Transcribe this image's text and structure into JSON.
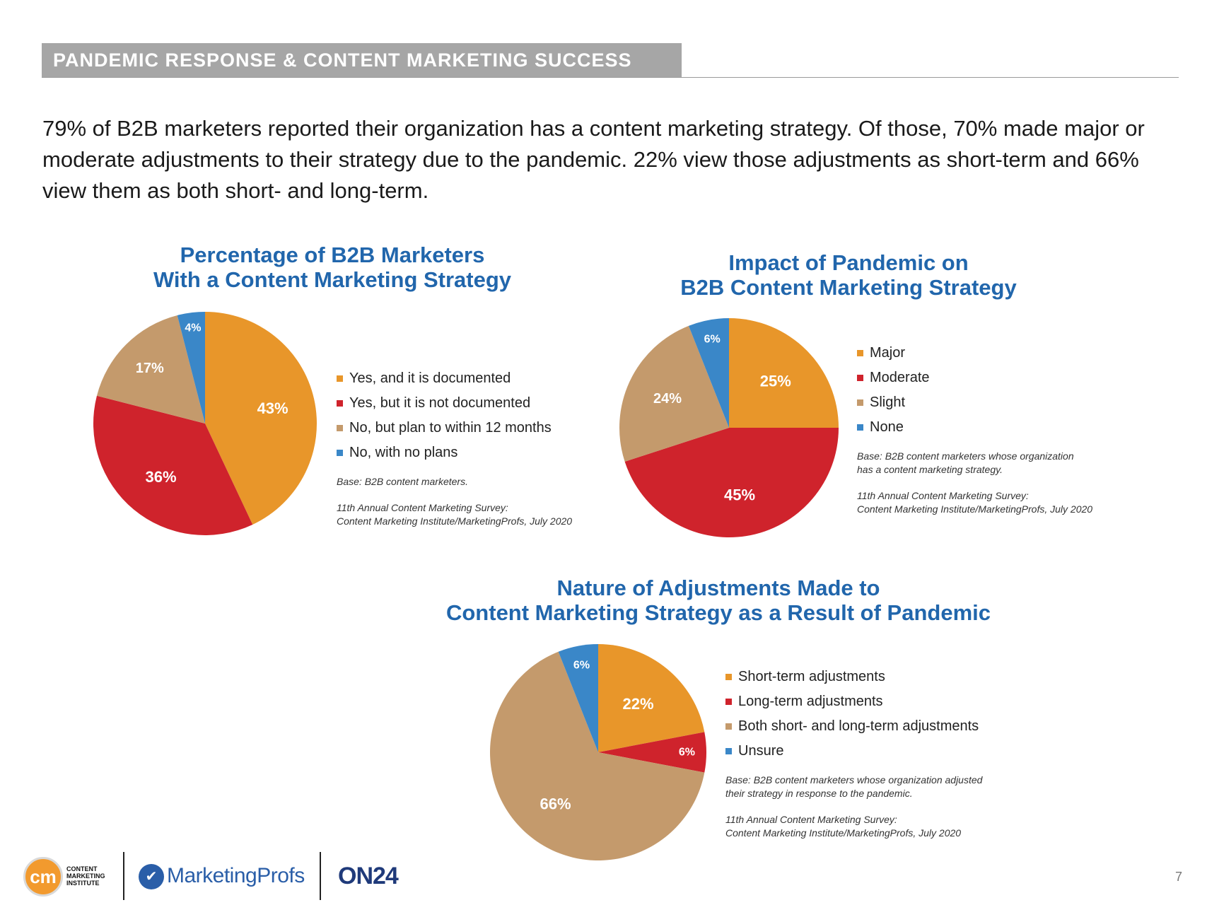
{
  "header": {
    "title": "PANDEMIC RESPONSE & CONTENT MARKETING SUCCESS"
  },
  "intro": {
    "text": "79% of B2B marketers reported their organization has a content marketing strategy. Of those, 70% made major or moderate adjustments to their strategy due to the pandemic. 22% view those adjustments as short-term and 66% view them as both short- and long-term."
  },
  "colors": {
    "orange": "#e8962a",
    "red": "#cf232c",
    "tan": "#c49a6c",
    "blue": "#3a87c8",
    "title_blue": "#2166ac"
  },
  "chart_data": [
    {
      "type": "pie",
      "title_line1": "Percentage of B2B Marketers",
      "title_line2": "With a Content Marketing Strategy",
      "categories": [
        "Yes, and it is documented",
        "Yes, but it is not documented",
        "No, but plan to within 12 months",
        "No, with no plans"
      ],
      "values": [
        43,
        36,
        17,
        4
      ],
      "labels": [
        "43%",
        "36%",
        "17%",
        "4%"
      ],
      "colors": [
        "#e8962a",
        "#cf232c",
        "#c49a6c",
        "#3a87c8"
      ],
      "base_note": "Base: B2B content marketers.",
      "source_line1": "11th Annual Content Marketing Survey:",
      "source_line2": "Content Marketing Institute/MarketingProfs, July 2020"
    },
    {
      "type": "pie",
      "title_line1": "Impact of Pandemic on",
      "title_line2": "B2B Content Marketing Strategy",
      "categories": [
        "Major",
        "Moderate",
        "Slight",
        "None"
      ],
      "values": [
        25,
        45,
        24,
        6
      ],
      "labels": [
        "25%",
        "45%",
        "24%",
        "6%"
      ],
      "colors": [
        "#e8962a",
        "#cf232c",
        "#c49a6c",
        "#3a87c8"
      ],
      "base_note_line1": "Base: B2B content marketers whose organization",
      "base_note_line2": "has a content marketing strategy.",
      "source_line1": "11th Annual Content Marketing Survey:",
      "source_line2": "Content Marketing Institute/MarketingProfs, July 2020"
    },
    {
      "type": "pie",
      "title_line1": "Nature of Adjustments Made to",
      "title_line2": "Content Marketing Strategy as a Result of Pandemic",
      "categories": [
        "Short-term adjustments",
        "Long-term adjustments",
        "Both short- and long-term adjustments",
        "Unsure"
      ],
      "values": [
        22,
        6,
        66,
        6
      ],
      "labels": [
        "22%",
        "6%",
        "66%",
        "6%"
      ],
      "colors": [
        "#e8962a",
        "#cf232c",
        "#c49a6c",
        "#3a87c8"
      ],
      "base_note_line1": "Base: B2B content marketers whose organization adjusted",
      "base_note_line2": "their strategy in response to the pandemic.",
      "source_line1": "11th Annual Content Marketing Survey:",
      "source_line2": "Content Marketing Institute/MarketingProfs, July 2020"
    }
  ],
  "footer": {
    "cmi_mark": "cm",
    "cmi_line1": "CONTENT",
    "cmi_line2": "MARKETING",
    "cmi_line3": "INSTITUTE",
    "marketingprofs": "MarketingProfs",
    "on24": "ON24",
    "page_number": "7"
  }
}
